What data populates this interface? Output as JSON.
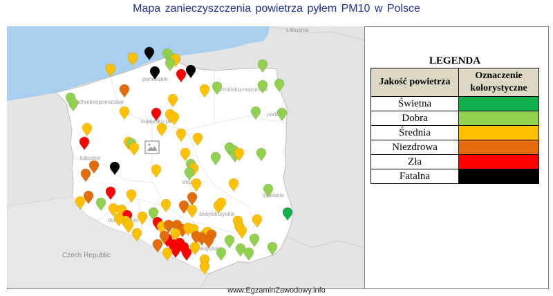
{
  "title": "Mapa  zanieczyszczenia powietrza  pyłem PM10  w Polsce",
  "footer": "www.EgzaminZawodowy.info",
  "colors": {
    "Świetna": "#12b04a",
    "Dobra": "#92d050",
    "Średnia": "#ffc000",
    "Niezdrowa": "#e46c0a",
    "Zła": "#ff0000",
    "Fatalna": "#000000"
  },
  "legend": {
    "title": "LEGENDA",
    "col1_header": "Jakość powietrza",
    "col2_header": "Oznaczenie kolorystyczne",
    "rows": [
      {
        "label": "Świetna",
        "color": "#12b04a"
      },
      {
        "label": "Dobra",
        "color": "#92d050"
      },
      {
        "label": "Średnia",
        "color": "#ffc000"
      },
      {
        "label": "Niezdrowa",
        "color": "#e46c0a"
      },
      {
        "label": "Zła",
        "color": "#ff0000"
      },
      {
        "label": "Fatalna",
        "color": "#000000"
      }
    ]
  },
  "map": {
    "labels": {
      "lithuania": "Lithuania",
      "pomorskie": "pomorskie",
      "zachodniopomorskie": "zachodniopomorskie",
      "warminsko": "warmińsko-mazurskie",
      "podlaskie": "podla",
      "kujawsko": "kujawsko-pom",
      "lubuskie": "lubuskie",
      "lodzkie": "łódz",
      "lubelskie": "lubelskie",
      "dolnoslaskie": "dolnośląskie",
      "swietokrzyskie": "świętokrzyskie",
      "malopolskie": "małopolskie",
      "czech": "Czech Republic"
    },
    "broken_image_icon": "broken-image-icon",
    "marker_icon": "map-pin-icon"
  }
}
